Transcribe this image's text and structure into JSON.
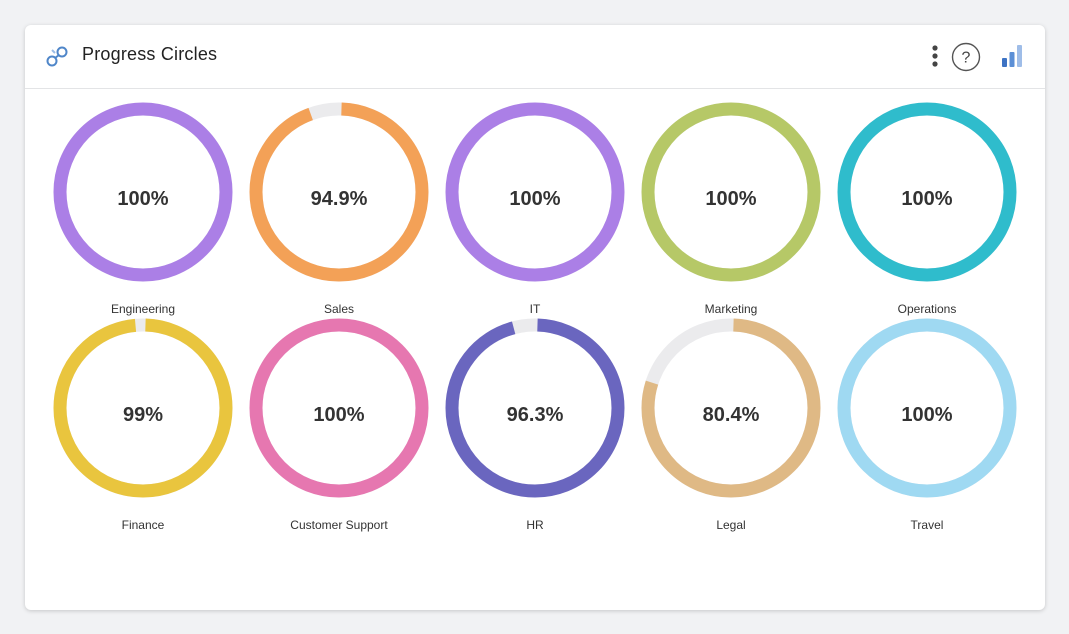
{
  "widget": {
    "title": "Progress Circles",
    "icons": {
      "logo": "link-nodes-icon",
      "menu": "more-vertical-icon",
      "help": "help-circle-icon",
      "stats": "bar-chart-icon"
    },
    "help_glyph": "?"
  },
  "track_color": "#ebebed",
  "rings": [
    {
      "label": "Engineering",
      "value": 100,
      "display": "100%",
      "color": "#ab7fe6"
    },
    {
      "label": "Sales",
      "value": 94.9,
      "display": "94.9%",
      "color": "#f3a157"
    },
    {
      "label": "IT",
      "value": 100,
      "display": "100%",
      "color": "#ab7fe6"
    },
    {
      "label": "Marketing",
      "value": 100,
      "display": "100%",
      "color": "#b6c867"
    },
    {
      "label": "Operations",
      "value": 100,
      "display": "100%",
      "color": "#2fbccc"
    },
    {
      "label": "Finance",
      "value": 99,
      "display": "99%",
      "color": "#e9c53e"
    },
    {
      "label": "Customer Support",
      "value": 100,
      "display": "100%",
      "color": "#e677b0"
    },
    {
      "label": "HR",
      "value": 96.3,
      "display": "96.3%",
      "color": "#6a66bf"
    },
    {
      "label": "Legal",
      "value": 80.4,
      "display": "80.4%",
      "color": "#dfb985"
    },
    {
      "label": "Travel",
      "value": 100,
      "display": "100%",
      "color": "#9fd9f2"
    }
  ]
}
